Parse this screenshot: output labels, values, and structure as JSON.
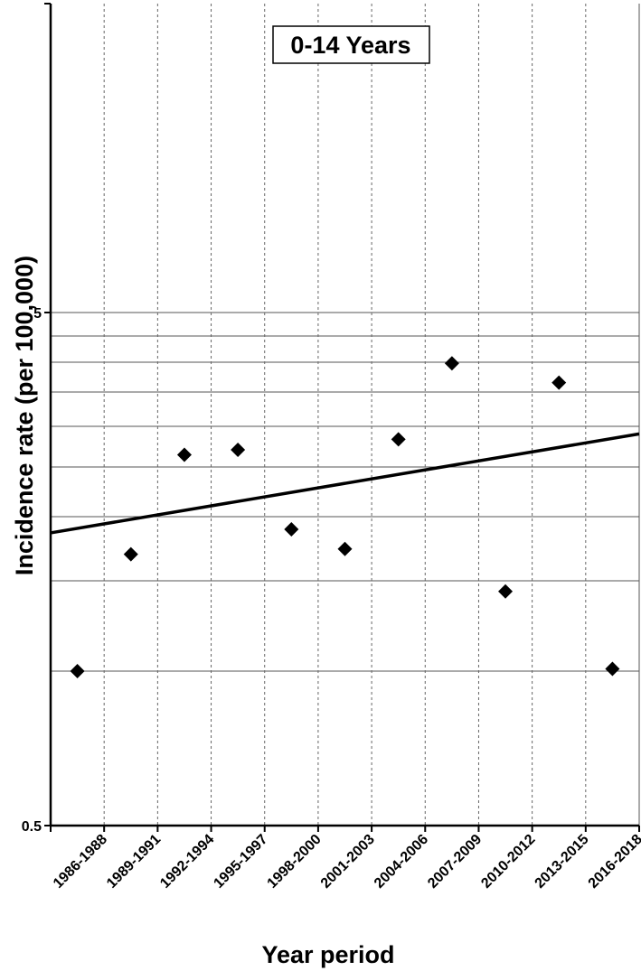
{
  "chart_data": {
    "type": "scatter",
    "title": "0-14 Years",
    "xlabel": "Year period",
    "ylabel": "Incidence rate (per 100,000)",
    "y_scale": "log",
    "ylim": [
      0.5,
      20
    ],
    "y_tick_labels": [
      "5",
      "0.5"
    ],
    "y_tick_values": [
      5,
      0.5
    ],
    "y_gridlines": [
      1,
      1.5,
      2,
      2.5,
      3,
      3.5,
      4,
      4.5,
      5
    ],
    "x_grid": "dashed",
    "legend": "none",
    "categories": [
      "1986-1988",
      "1989-1991",
      "1992-1994",
      "1995-1997",
      "1998-2000",
      "2001-2003",
      "2004-2006",
      "2007-2009",
      "2010-2012",
      "2013-2015",
      "2016-2018"
    ],
    "series": [
      {
        "values": [
          1.0,
          1.69,
          2.64,
          2.7,
          1.89,
          1.73,
          2.83,
          3.98,
          1.43,
          3.65,
          1.01
        ],
        "marker": "diamond",
        "color": "#000000"
      }
    ],
    "trendline": {
      "start": 1.86,
      "end": 2.9,
      "color": "#000000"
    }
  }
}
